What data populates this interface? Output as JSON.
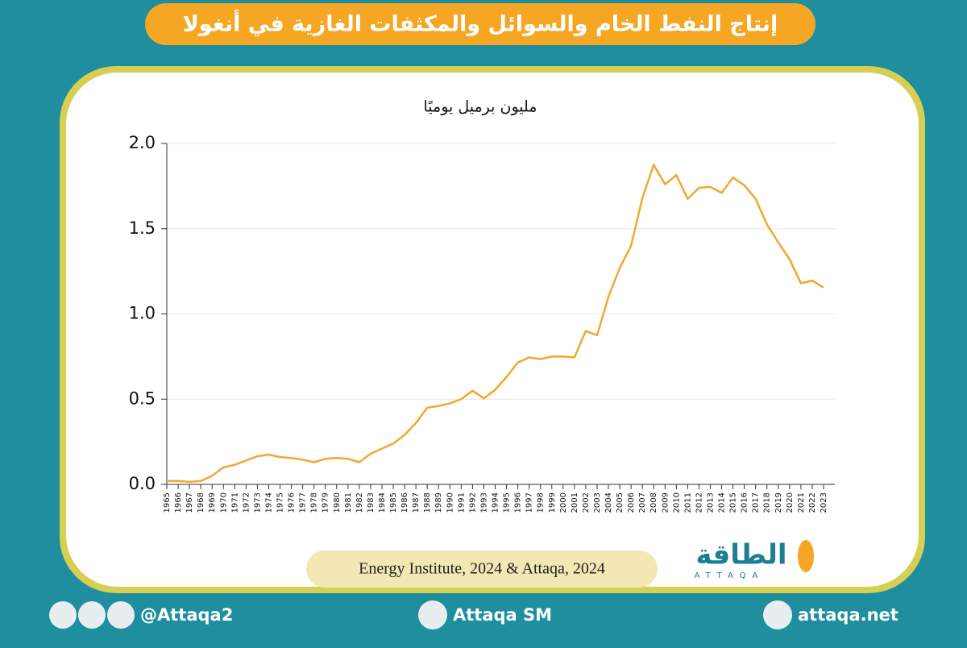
{
  "chart_data": {
    "type": "line",
    "title": "إنتاج النفط الخام والسوائل والمكثفات الغازية في أنغولا",
    "subtitle": "مليون برميل يوميًا",
    "source": "Energy Institute, 2024 & Attaqa, 2024",
    "categories": [
      "1965",
      "1966",
      "1967",
      "1968",
      "1969",
      "1970",
      "1971",
      "1972",
      "1973",
      "1974",
      "1975",
      "1976",
      "1977",
      "1978",
      "1979",
      "1980",
      "1981",
      "1982",
      "1983",
      "1984",
      "1985",
      "1986",
      "1987",
      "1988",
      "1989",
      "1990",
      "1991",
      "1992",
      "1993",
      "1994",
      "1995",
      "1996",
      "1997",
      "1998",
      "1999",
      "2000",
      "2001",
      "2002",
      "2003",
      "2004",
      "2005",
      "2006",
      "2007",
      "2008",
      "2009",
      "2010",
      "2011",
      "2012",
      "2013",
      "2014",
      "2015",
      "2016",
      "2017",
      "2018",
      "2019",
      "2020",
      "2021",
      "2022",
      "2023"
    ],
    "values": [
      0.02,
      0.02,
      0.015,
      0.02,
      0.05,
      0.1,
      0.115,
      0.14,
      0.165,
      0.175,
      0.16,
      0.155,
      0.145,
      0.13,
      0.15,
      0.155,
      0.15,
      0.13,
      0.18,
      0.21,
      0.24,
      0.29,
      0.36,
      0.45,
      0.46,
      0.475,
      0.5,
      0.55,
      0.505,
      0.555,
      0.63,
      0.715,
      0.745,
      0.735,
      0.75,
      0.75,
      0.745,
      0.9,
      0.875,
      1.1,
      1.27,
      1.4,
      1.68,
      1.875,
      1.76,
      1.815,
      1.675,
      1.74,
      1.745,
      1.71,
      1.8,
      1.755,
      1.675,
      1.525,
      1.42,
      1.32,
      1.18,
      1.195,
      1.155
    ],
    "color": "#f0a830",
    "ylim": [
      0,
      2
    ],
    "yticks": [
      {
        "value": 0,
        "label": "0.0"
      },
      0.5,
      {
        "value": 1,
        "label": "1.0"
      },
      1.5,
      {
        "value": 2,
        "label": "2.0"
      }
    ],
    "grid": true
  },
  "logo": {
    "arabic": "الطاقة",
    "latin": "ATTAQA"
  },
  "footer": {
    "handle": "@Attaqa2",
    "youtube": "Attaqa SM",
    "website": "attaqa.net"
  }
}
